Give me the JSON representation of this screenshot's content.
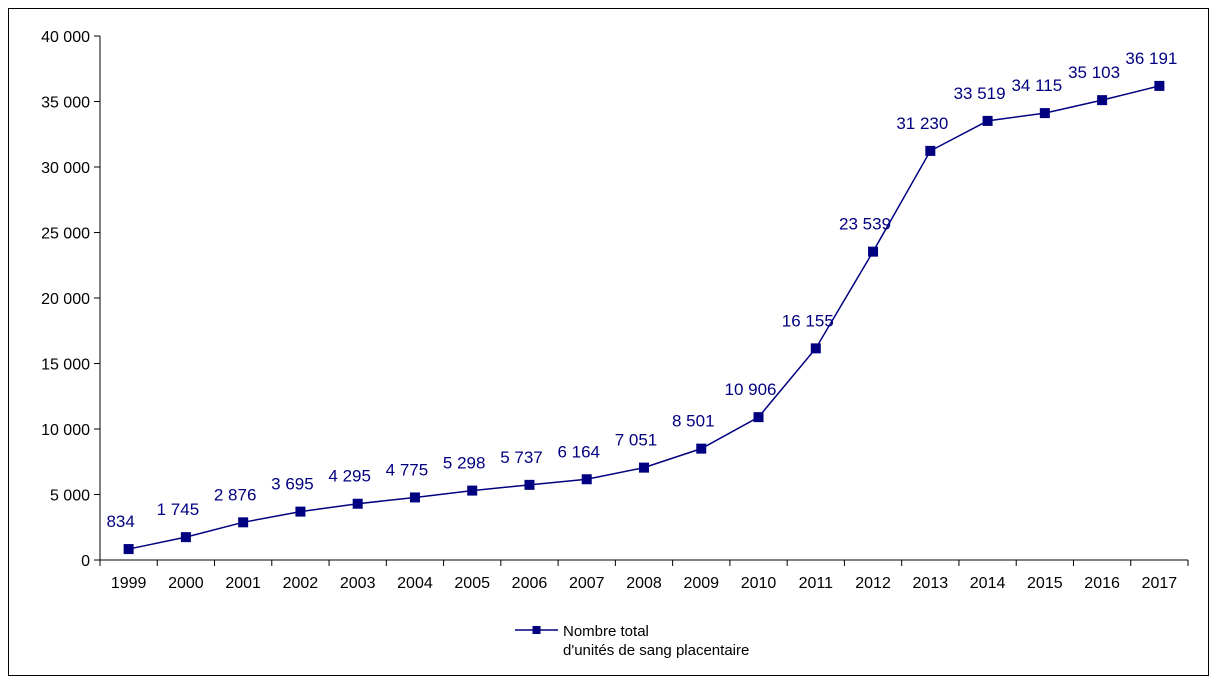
{
  "chart_data": {
    "type": "line",
    "title": "",
    "xlabel": "",
    "ylabel": "",
    "ylim": [
      0,
      40000
    ],
    "yticks": [
      0,
      5000,
      10000,
      15000,
      20000,
      25000,
      30000,
      35000,
      40000
    ],
    "ytick_labels": [
      "0",
      "5 000",
      "10 000",
      "15 000",
      "20 000",
      "25 000",
      "30 000",
      "35 000",
      "40 000"
    ],
    "grid": false,
    "legend_position": "bottom-center",
    "color": "#000080",
    "categories": [
      "1999",
      "2000",
      "2001",
      "2002",
      "2003",
      "2004",
      "2005",
      "2006",
      "2007",
      "2008",
      "2009",
      "2010",
      "2011",
      "2012",
      "2013",
      "2014",
      "2015",
      "2016",
      "2017"
    ],
    "series": [
      {
        "name": "Nombre total d'unités de sang placentaire",
        "legend_lines": [
          "Nombre total",
          "d'unités de sang placentaire"
        ],
        "values": [
          834,
          1745,
          2876,
          3695,
          4295,
          4775,
          5298,
          5737,
          6164,
          7051,
          8501,
          10906,
          16155,
          23539,
          31230,
          33519,
          34115,
          35103,
          36191
        ],
        "labels": [
          "834",
          "1 745",
          "2 876",
          "3 695",
          "4 295",
          "4 775",
          "5 298",
          "5 737",
          "6 164",
          "7 051",
          "8 501",
          "10 906",
          "16 155",
          "23 539",
          "31 230",
          "33 519",
          "34 115",
          "35 103",
          "36 191"
        ]
      }
    ]
  }
}
